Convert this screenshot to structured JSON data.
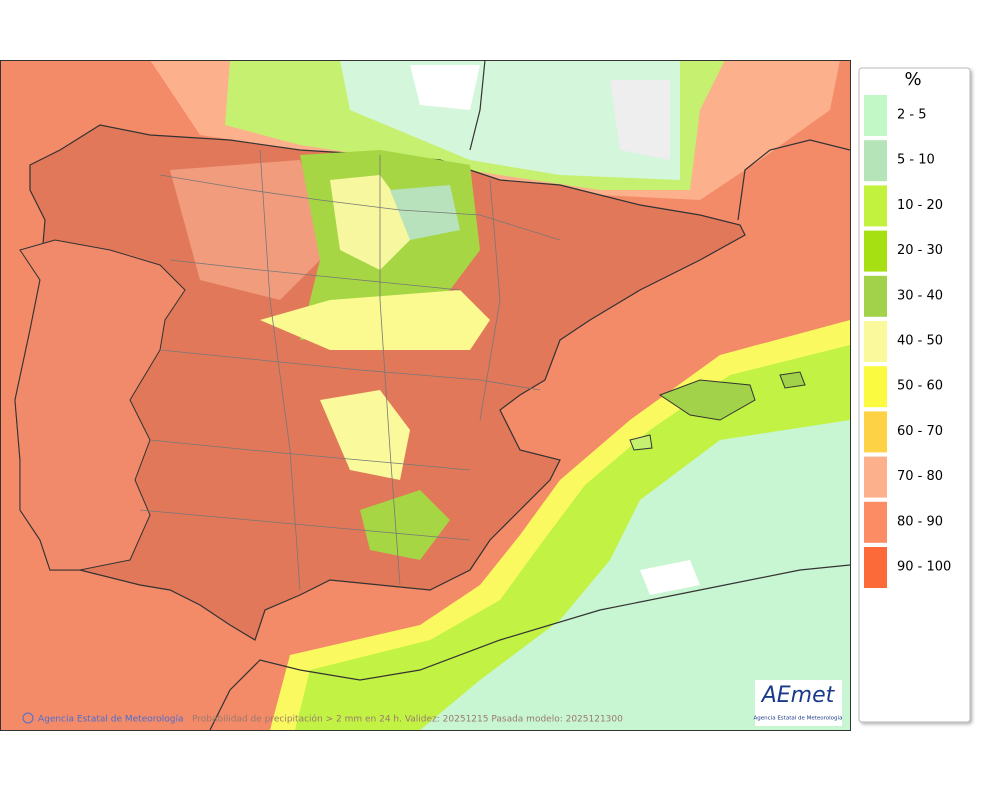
{
  "legend": {
    "title": "%",
    "items": [
      {
        "label": "2 - 5",
        "color": "#c2f7c6"
      },
      {
        "label": "5 - 10",
        "color": "#b4e4b8"
      },
      {
        "label": "10 - 20",
        "color": "#c2f23e"
      },
      {
        "label": "20 - 30",
        "color": "#a6e012"
      },
      {
        "label": "30 - 40",
        "color": "#a2d24a"
      },
      {
        "label": "40 - 50",
        "color": "#fafa9c"
      },
      {
        "label": "50 - 60",
        "color": "#fafa40"
      },
      {
        "label": "60 - 70",
        "color": "#fdd244"
      },
      {
        "label": "70 - 80",
        "color": "#fcb08c"
      },
      {
        "label": "80 - 90",
        "color": "#fc8c64"
      },
      {
        "label": "90 - 100",
        "color": "#fc6a3a"
      }
    ]
  },
  "footer": {
    "credit": "Agencia Estatal de Meteorología",
    "caption": "Probabilidad de precipitación > 2 mm en 24 h. Validez: 20251215 Pasada modelo: 2025121300"
  },
  "logo": {
    "name": "AEmet",
    "subtitle": "Agencia Estatal de Meteorología"
  }
}
